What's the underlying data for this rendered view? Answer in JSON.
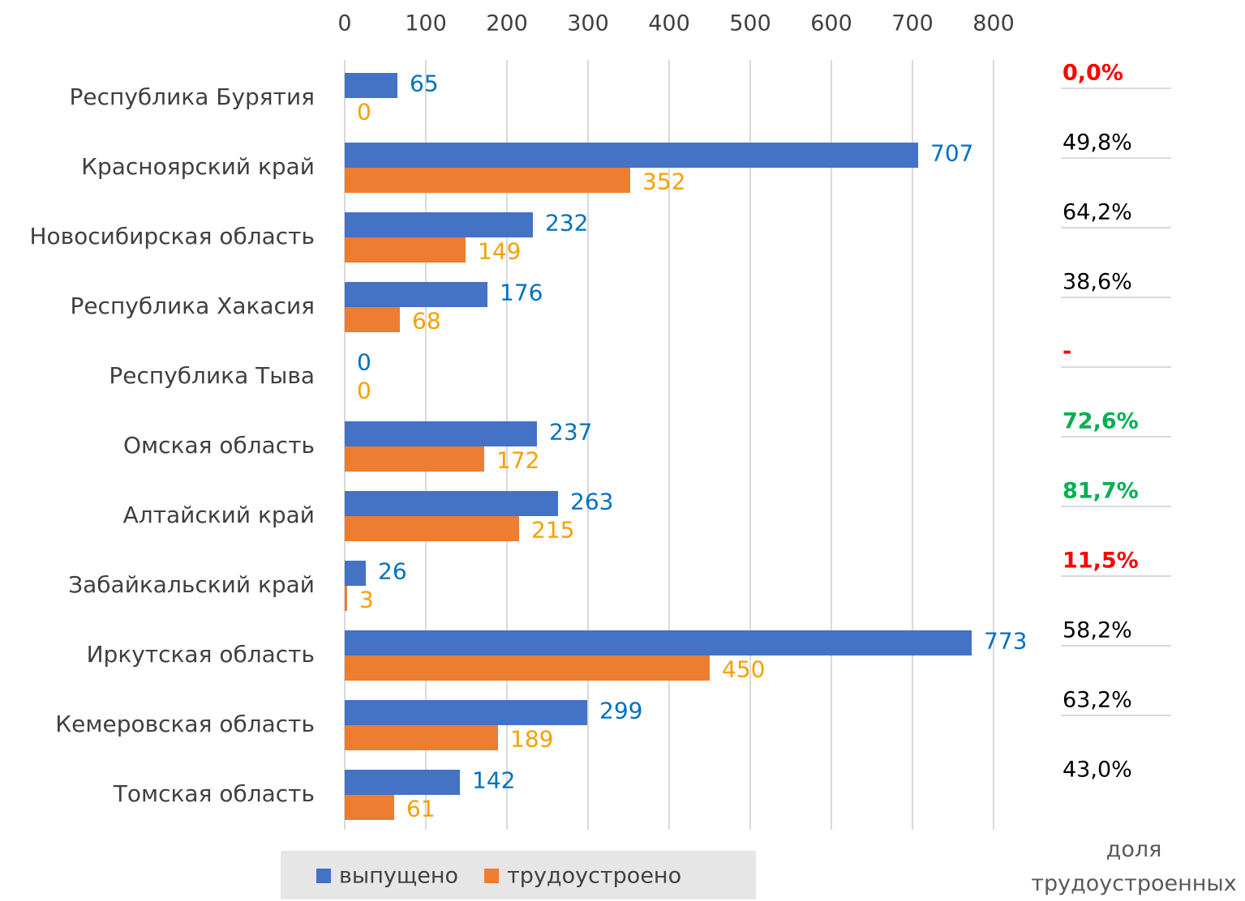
{
  "chart_data": {
    "type": "bar",
    "orientation": "horizontal",
    "categories": [
      "Республика Бурятия",
      "Красноярский край",
      "Новосибирская область",
      "Республика Хакасия",
      "Республика Тыва",
      "Омская область",
      "Алтайский край",
      "Забайкальский край",
      "Иркутская область",
      "Кемеровская область",
      "Томская область"
    ],
    "series": [
      {
        "name": "выпущено",
        "color": "#4472c4",
        "label_color": "#0070c0",
        "values": [
          65,
          707,
          232,
          176,
          0,
          237,
          263,
          26,
          773,
          299,
          142
        ]
      },
      {
        "name": "трудоустроено",
        "color": "#ed7d31",
        "label_color": "#f5a000",
        "values": [
          0,
          352,
          149,
          68,
          0,
          172,
          215,
          3,
          450,
          189,
          61
        ]
      }
    ],
    "xlim": [
      0,
      800
    ],
    "xticks": [
      0,
      100,
      200,
      300,
      400,
      500,
      600,
      700,
      800
    ],
    "grid": true,
    "legend": "bottom",
    "share": {
      "title": "доля трудоустроенных",
      "values": [
        0.0,
        49.8,
        64.2,
        38.6,
        null,
        72.6,
        81.7,
        11.5,
        58.2,
        63.2,
        43.0
      ],
      "value_labels": [
        "0,0%",
        "49,8%",
        "64,2%",
        "38,6%",
        "-",
        "72,6%",
        "81,7%",
        "11,5%",
        "58,2%",
        "63,2%",
        "43,0%"
      ],
      "colors": [
        "#ff0000",
        "#000000",
        "#000000",
        "#000000",
        "#ff0000",
        "#00b050",
        "#00b050",
        "#ff0000",
        "#000000",
        "#000000",
        "#000000"
      ],
      "bold": [
        true,
        false,
        false,
        false,
        true,
        true,
        true,
        true,
        false,
        false,
        false
      ]
    }
  }
}
